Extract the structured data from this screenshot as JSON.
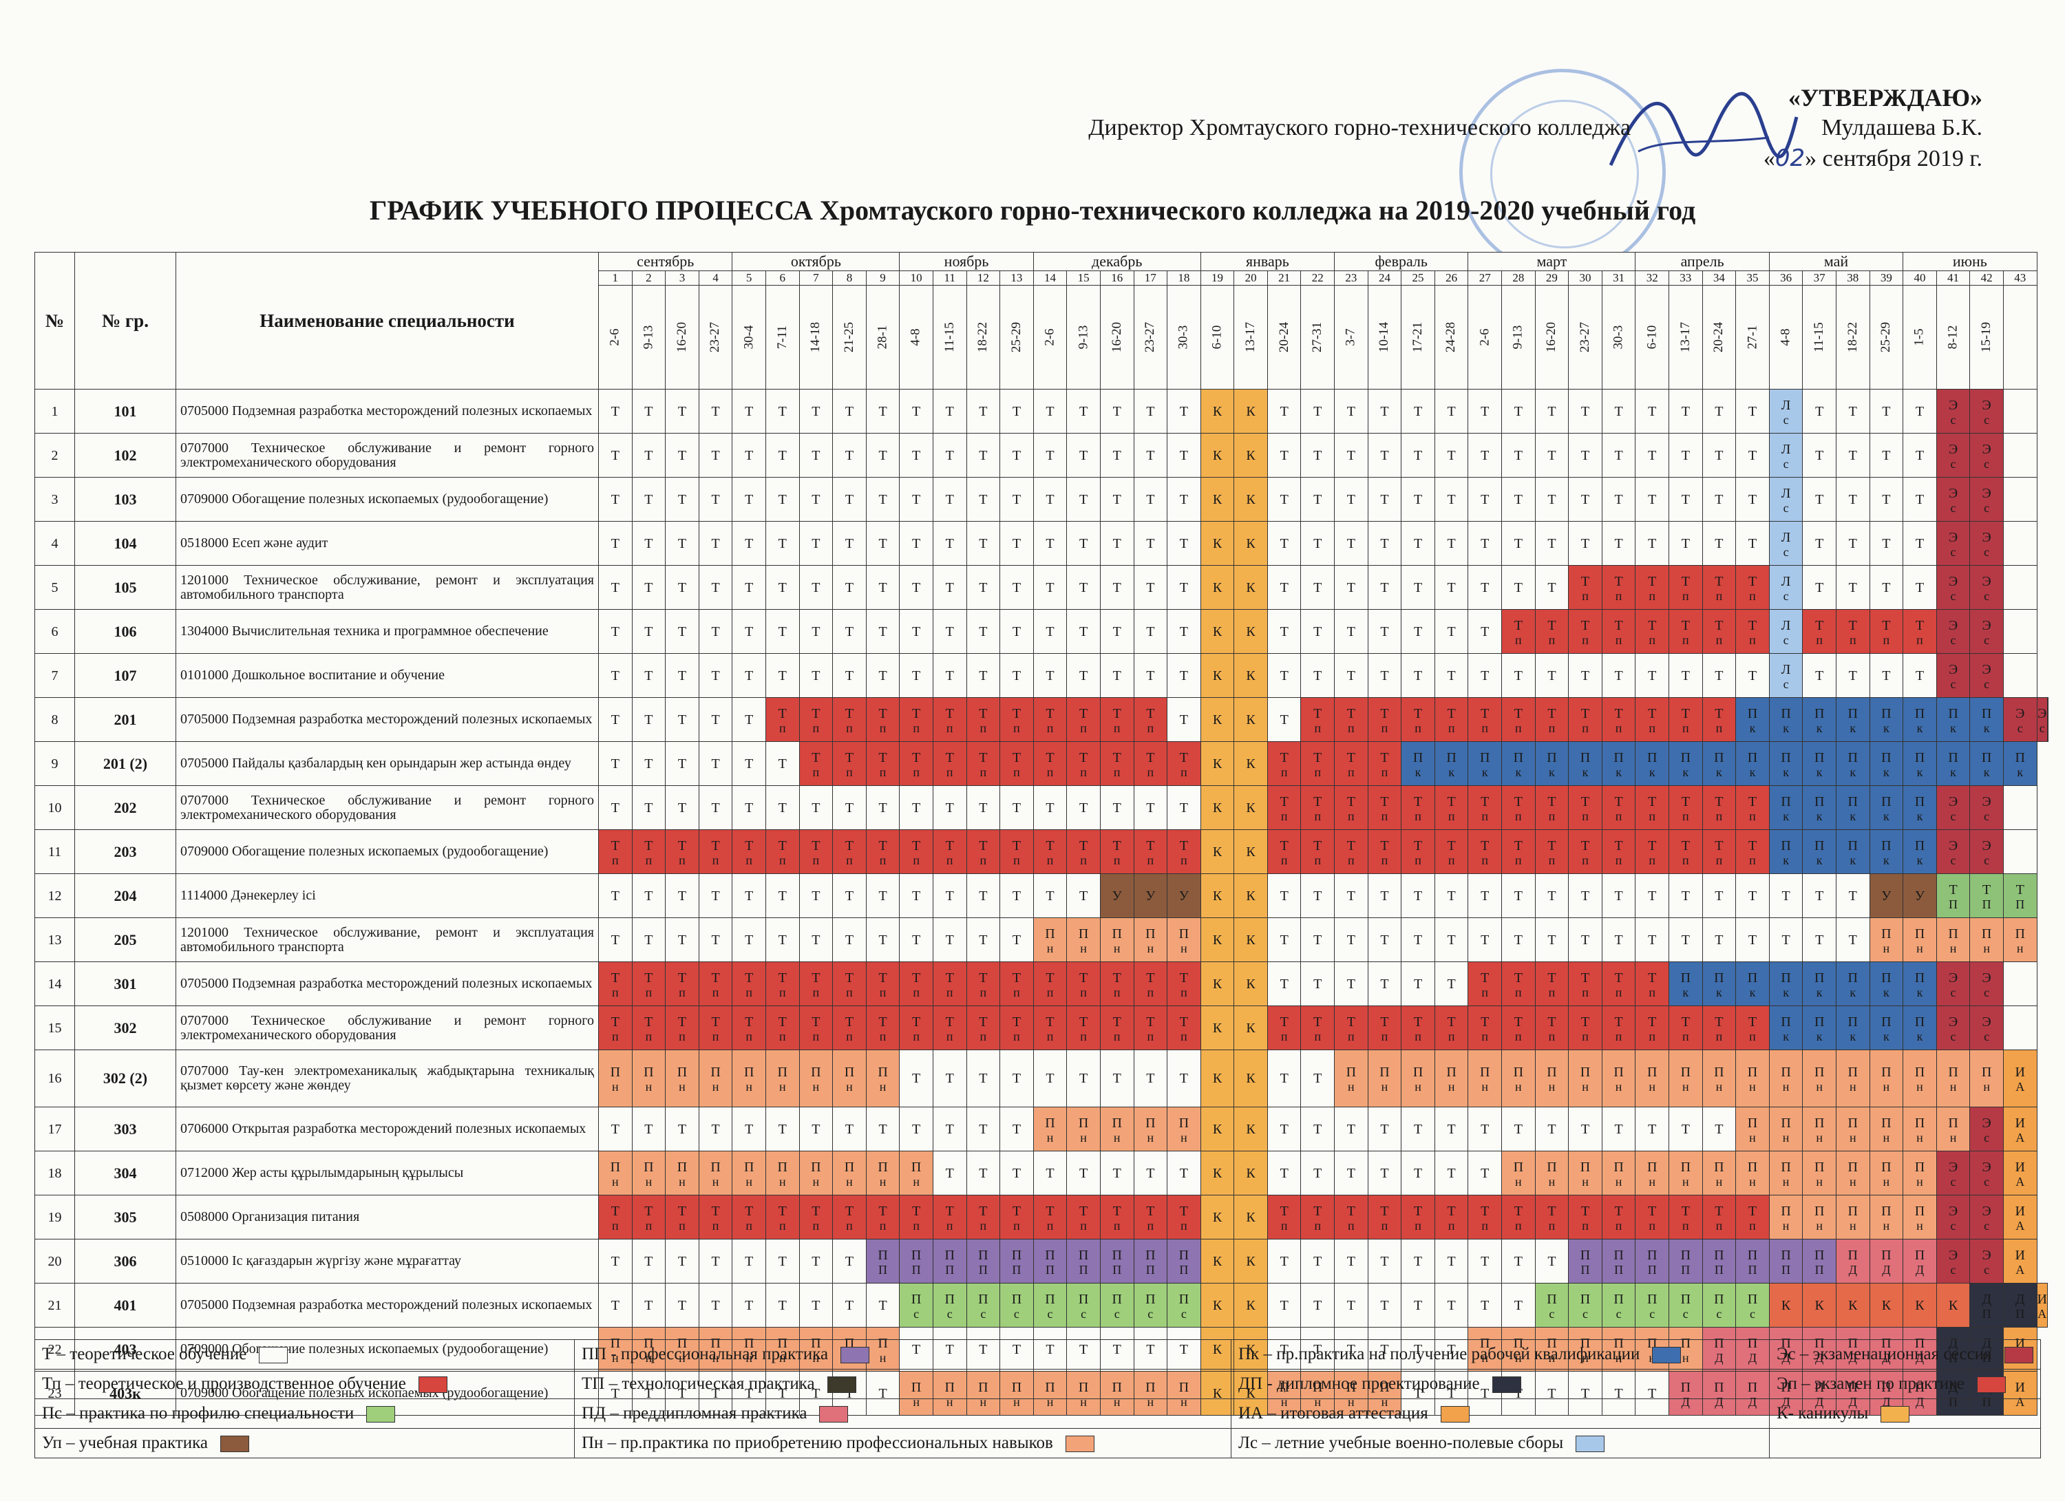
{
  "approval": {
    "word": "«УТВЕРЖДАЮ»",
    "line1": "Директор Хромтауского горно-технического колледжа",
    "name": "Мулдашева Б.К.",
    "date_prefix": "«",
    "date_day": "02",
    "date_suffix": "» сентября 2019 г."
  },
  "title": "ГРАФИК УЧЕБНОГО ПРОЦЕССА Хромтауского горно-технического колледжа на 2019-2020 учебный год",
  "header": {
    "num": "№",
    "group": "№ гр.",
    "name": "Наименование специальности"
  },
  "months": [
    {
      "name": "сентябрь",
      "span": 4
    },
    {
      "name": "октябрь",
      "span": 5
    },
    {
      "name": "ноябрь",
      "span": 4
    },
    {
      "name": "декабрь",
      "span": 5
    },
    {
      "name": "январь",
      "span": 4
    },
    {
      "name": "февраль",
      "span": 4
    },
    {
      "name": "март",
      "span": 5
    },
    {
      "name": "апрель",
      "span": 4
    },
    {
      "name": "май",
      "span": 4
    },
    {
      "name": "июнь",
      "span": 4
    }
  ],
  "weeks": [
    "1",
    "2",
    "3",
    "4",
    "5",
    "6",
    "7",
    "8",
    "9",
    "10",
    "11",
    "12",
    "13",
    "14",
    "15",
    "16",
    "17",
    "18",
    "19",
    "20",
    "21",
    "22",
    "23",
    "24",
    "25",
    "26",
    "27",
    "28",
    "29",
    "30",
    "31",
    "32",
    "33",
    "34",
    "35",
    "36",
    "37",
    "38",
    "39",
    "40",
    "41",
    "42",
    "43"
  ],
  "dates": [
    "2-6",
    "9-13",
    "16-20",
    "23-27",
    "30-4",
    "7-11",
    "14-18",
    "21-25",
    "28-1",
    "4-8",
    "11-15",
    "18-22",
    "25-29",
    "2-6",
    "9-13",
    "16-20",
    "23-27",
    "30-3",
    "6-10",
    "13-17",
    "20-24",
    "27-31",
    "3-7",
    "10-14",
    "17-21",
    "24-28",
    "2-6",
    "9-13",
    "16-20",
    "23-27",
    "30-3",
    "6-10",
    "13-17",
    "20-24",
    "27-1",
    "4-8",
    "11-15",
    "18-22",
    "25-29",
    "1-5",
    "8-12",
    "15-19",
    ""
  ],
  "codes": {
    "T": {
      "l1": "Т",
      "l2": "",
      "bg": "#fbfbf8"
    },
    "K": {
      "l1": "К",
      "l2": "",
      "bg": "#f3b14e"
    },
    "Tp": {
      "l1": "Т",
      "l2": "п",
      "bg": "#d7453f"
    },
    "Pn": {
      "l1": "П",
      "l2": "н",
      "bg": "#f2a478"
    },
    "Pk": {
      "l1": "П",
      "l2": "к",
      "bg": "#3e6ead"
    },
    "Ps": {
      "l1": "П",
      "l2": "с",
      "bg": "#9fcf7b"
    },
    "PP": {
      "l1": "П",
      "l2": "П",
      "bg": "#8e74b0"
    },
    "PD": {
      "l1": "П",
      "l2": "Д",
      "bg": "#e0707a"
    },
    "Ls": {
      "l1": "Л",
      "l2": "с",
      "bg": "#a8c8ea"
    },
    "Es": {
      "l1": "Э",
      "l2": "с",
      "bg": "#b63a46"
    },
    "IA": {
      "l1": "И",
      "l2": "А",
      "bg": "#f2a24a"
    },
    "DP": {
      "l1": "Д",
      "l2": "П",
      "bg": "#2e3140"
    },
    "Up": {
      "l1": "У",
      "l2": "",
      "bg": "#8c5b3d"
    },
    "Kk": {
      "l1": "К",
      "l2": "",
      "bg": "#e46a4a"
    },
    "TP": {
      "l1": "Т",
      "l2": "П",
      "bg": "#8fc279"
    },
    "E": {
      "l1": "",
      "l2": "",
      "bg": "#fbfbf8"
    }
  },
  "rows": [
    {
      "num": "1",
      "group": "101",
      "name": "0705000 Подземная разработка месторождений полезных ископаемых",
      "cells": [
        [
          "T",
          18
        ],
        [
          "K",
          2
        ],
        [
          "T",
          15
        ],
        [
          "Ls",
          1
        ],
        [
          "T",
          4
        ],
        [
          "Es",
          2
        ],
        [
          "E",
          1
        ]
      ]
    },
    {
      "num": "2",
      "group": "102",
      "name": "0707000 Техническое обслуживание и ремонт горного электромеханического оборудования",
      "cells": [
        [
          "T",
          18
        ],
        [
          "K",
          2
        ],
        [
          "T",
          15
        ],
        [
          "Ls",
          1
        ],
        [
          "T",
          4
        ],
        [
          "Es",
          2
        ],
        [
          "E",
          1
        ]
      ]
    },
    {
      "num": "3",
      "group": "103",
      "name": "0709000 Обогащение полезных ископаемых (рудообогащение)",
      "cells": [
        [
          "T",
          18
        ],
        [
          "K",
          2
        ],
        [
          "T",
          15
        ],
        [
          "Ls",
          1
        ],
        [
          "T",
          4
        ],
        [
          "Es",
          2
        ],
        [
          "E",
          1
        ]
      ]
    },
    {
      "num": "4",
      "group": "104",
      "name": "0518000 Есеп және аудит",
      "cells": [
        [
          "T",
          18
        ],
        [
          "K",
          2
        ],
        [
          "T",
          15
        ],
        [
          "Ls",
          1
        ],
        [
          "T",
          4
        ],
        [
          "Es",
          2
        ],
        [
          "E",
          1
        ]
      ]
    },
    {
      "num": "5",
      "group": "105",
      "name": "1201000 Техническое обслуживание, ремонт и эксплуатация автомобильного транспорта",
      "cells": [
        [
          "T",
          18
        ],
        [
          "K",
          2
        ],
        [
          "T",
          9
        ],
        [
          "Tp",
          6
        ],
        [
          "Ls",
          1
        ],
        [
          "T",
          4
        ],
        [
          "Es",
          2
        ],
        [
          "E",
          1
        ]
      ]
    },
    {
      "num": "6",
      "group": "106",
      "name": "1304000 Вычислительная техника и программное обеспечение",
      "cells": [
        [
          "T",
          18
        ],
        [
          "K",
          2
        ],
        [
          "T",
          7
        ],
        [
          "Tp",
          8
        ],
        [
          "Ls",
          1
        ],
        [
          "Tp",
          4
        ],
        [
          "Es",
          2
        ],
        [
          "E",
          1
        ]
      ]
    },
    {
      "num": "7",
      "group": "107",
      "name": "0101000 Дошкольное воспитание и обучение",
      "cells": [
        [
          "T",
          18
        ],
        [
          "K",
          2
        ],
        [
          "T",
          15
        ],
        [
          "Ls",
          1
        ],
        [
          "T",
          4
        ],
        [
          "Es",
          2
        ],
        [
          "E",
          1
        ]
      ]
    },
    {
      "num": "8",
      "group": "201",
      "name": "0705000 Подземная разработка месторождений полезных ископаемых",
      "cells": [
        [
          "T",
          5
        ],
        [
          "Tp",
          12
        ],
        [
          "T",
          1
        ],
        [
          "K",
          2
        ],
        [
          "T",
          1
        ],
        [
          "Tp",
          13
        ],
        [
          "Pk",
          8
        ],
        [
          "Es",
          2
        ],
        [
          "E",
          1
        ]
      ]
    },
    {
      "num": "9",
      "group": "201 (2)",
      "name": "0705000 Пайдалы қазбалардың кен орындарын жер астында өндеу",
      "cells": [
        [
          "T",
          6
        ],
        [
          "Tp",
          12
        ],
        [
          "K",
          2
        ],
        [
          "Tp",
          4
        ],
        [
          "Pk",
          19
        ]
      ]
    },
    {
      "num": "10",
      "group": "202",
      "name": "0707000 Техническое обслуживание и ремонт горного электромеханического оборудования",
      "cells": [
        [
          "T",
          18
        ],
        [
          "K",
          2
        ],
        [
          "Tp",
          15
        ],
        [
          "Pk",
          5
        ],
        [
          "Es",
          2
        ],
        [
          "E",
          1
        ]
      ]
    },
    {
      "num": "11",
      "group": "203",
      "name": "0709000 Обогащение полезных ископаемых (рудообогащение)",
      "cells": [
        [
          "Tp",
          18
        ],
        [
          "K",
          2
        ],
        [
          "Tp",
          15
        ],
        [
          "Pk",
          5
        ],
        [
          "Es",
          2
        ],
        [
          "E",
          1
        ]
      ]
    },
    {
      "num": "12",
      "group": "204",
      "name": "1114000 Дәнекерлеу ісі",
      "cells": [
        [
          "T",
          15
        ],
        [
          "Up",
          3
        ],
        [
          "K",
          2
        ],
        [
          "T",
          18
        ],
        [
          "Up",
          2
        ],
        [
          "TP",
          3
        ]
      ]
    },
    {
      "num": "13",
      "group": "205",
      "name": "1201000 Техническое обслуживание, ремонт и эксплуатация автомобильного транспорта",
      "cells": [
        [
          "T",
          13
        ],
        [
          "Pn",
          5
        ],
        [
          "K",
          2
        ],
        [
          "T",
          18
        ],
        [
          "Pn",
          5
        ]
      ]
    },
    {
      "num": "14",
      "group": "301",
      "name": "0705000 Подземная разработка месторождений полезных ископаемых",
      "cells": [
        [
          "Tp",
          18
        ],
        [
          "K",
          2
        ],
        [
          "T",
          6
        ],
        [
          "Tp",
          6
        ],
        [
          "Pk",
          8
        ],
        [
          "Es",
          2
        ],
        [
          "E",
          1
        ]
      ]
    },
    {
      "num": "15",
      "group": "302",
      "name": "0707000 Техническое обслуживание и ремонт горного электромеханического оборудования",
      "cells": [
        [
          "Tp",
          18
        ],
        [
          "K",
          2
        ],
        [
          "Tp",
          15
        ],
        [
          "Pk",
          5
        ],
        [
          "Es",
          2
        ],
        [
          "E",
          1
        ]
      ]
    },
    {
      "num": "16",
      "group": "302 (2)",
      "name": "0707000 Тау-кен электромеханикалық жабдықтарына техникалық қызмет көрсету және жөндеу",
      "cells": [
        [
          "Pn",
          9
        ],
        [
          "T",
          9
        ],
        [
          "K",
          2
        ],
        [
          "T",
          2
        ],
        [
          "Pn",
          20
        ],
        [
          "IA",
          1
        ]
      ]
    },
    {
      "num": "17",
      "group": "303",
      "name": "0706000 Открытая разработка месторождений полезных ископаемых",
      "cells": [
        [
          "T",
          13
        ],
        [
          "Pn",
          5
        ],
        [
          "K",
          2
        ],
        [
          "T",
          14
        ],
        [
          "Pn",
          7
        ],
        [
          "Es",
          1
        ],
        [
          "IA",
          1
        ]
      ]
    },
    {
      "num": "18",
      "group": "304",
      "name": "0712000 Жер асты құрылымдарының құрылысы",
      "cells": [
        [
          "Pn",
          10
        ],
        [
          "T",
          8
        ],
        [
          "K",
          2
        ],
        [
          "T",
          7
        ],
        [
          "Pn",
          13
        ],
        [
          "Es",
          2
        ],
        [
          "IA",
          1
        ]
      ]
    },
    {
      "num": "19",
      "group": "305",
      "name": "0508000 Организация питания",
      "cells": [
        [
          "Tp",
          18
        ],
        [
          "K",
          2
        ],
        [
          "Tp",
          15
        ],
        [
          "Pn",
          5
        ],
        [
          "Es",
          2
        ],
        [
          "IA",
          1
        ]
      ]
    },
    {
      "num": "20",
      "group": "306",
      "name": "0510000 Іс қағаздарын жүргізу және мұрағаттау",
      "cells": [
        [
          "T",
          8
        ],
        [
          "PP",
          10
        ],
        [
          "K",
          2
        ],
        [
          "T",
          9
        ],
        [
          "PP",
          8
        ],
        [
          "PD",
          3
        ],
        [
          "Es",
          2
        ],
        [
          "IA",
          1
        ]
      ]
    },
    {
      "num": "21",
      "group": "401",
      "name": "0705000 Подземная разработка месторождений полезных ископаемых",
      "cells": [
        [
          "T",
          9
        ],
        [
          "Ps",
          9
        ],
        [
          "K",
          2
        ],
        [
          "T",
          8
        ],
        [
          "Ps",
          7
        ],
        [
          "Kk",
          6
        ],
        [
          "DP",
          2
        ],
        [
          "IA",
          1
        ]
      ]
    },
    {
      "num": "22",
      "group": "403",
      "name": "0709000 Обогащение полезных ископаемых (рудообогащение)",
      "cells": [
        [
          "Pn",
          9
        ],
        [
          "T",
          9
        ],
        [
          "K",
          2
        ],
        [
          "T",
          6
        ],
        [
          "Pn",
          7
        ],
        [
          "PD",
          7
        ],
        [
          "DP",
          2
        ],
        [
          "IA",
          1
        ]
      ]
    },
    {
      "num": "23",
      "group": "403к",
      "name": "0709000 Обогащение полезных ископаемых (рудообогащение)",
      "cells": [
        [
          "T",
          9
        ],
        [
          "Pn",
          9
        ],
        [
          "K",
          2
        ],
        [
          "Pn",
          4
        ],
        [
          "T",
          8
        ],
        [
          "PD",
          8
        ],
        [
          "DP",
          2
        ],
        [
          "IA",
          1
        ]
      ]
    }
  ],
  "legend": [
    [
      {
        "text": "Т – теоретическое обучение",
        "color": "#fbfbf8"
      },
      {
        "text": "ПП - профессиональная практика",
        "color": "#8e74b0"
      },
      {
        "text": "Пк – пр.практика на получение рабочей квалификации",
        "color": "#3e6ead"
      },
      {
        "text": "Эс – экзаменационная сессия",
        "color": "#b63a46"
      }
    ],
    [
      {
        "text": "Тп – теоретическое и производственное обучение",
        "color": "#d7453f"
      },
      {
        "text": "ТП – технологическая практика",
        "color": "#3d3a2c"
      },
      {
        "text": "ДП - дипломное проектирование",
        "color": "#2e3140"
      },
      {
        "text": "Эп – экзамен по практике",
        "color": "#d7453f"
      }
    ],
    [
      {
        "text": "Пс – практика по профилю специальности",
        "color": "#9fcf7b"
      },
      {
        "text": "ПД – преддипломная практика",
        "color": "#e0707a"
      },
      {
        "text": "ИА – итоговая аттестация",
        "color": "#f2a24a"
      },
      {
        "text": "К- каникулы",
        "color": "#f3b14e"
      }
    ],
    [
      {
        "text": "Уп – учебная практика",
        "color": "#8c5b3d"
      },
      {
        "text": "Пн – пр.практика по приобретению профессиональных навыков",
        "color": "#f2a478"
      },
      {
        "text": "Лс – летние учебные военно-полевые сборы",
        "color": "#a8c8ea"
      },
      {
        "text": "",
        "color": ""
      }
    ]
  ]
}
